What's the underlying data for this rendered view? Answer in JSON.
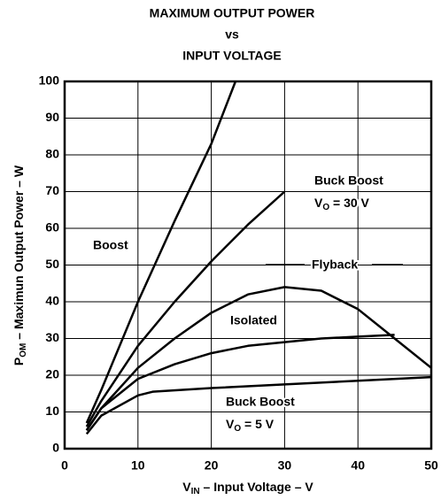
{
  "chart_data": {
    "type": "line",
    "title": [
      "MAXIMUM OUTPUT POWER",
      "vs",
      "INPUT VOLTAGE"
    ],
    "x_label": {
      "main": "V",
      "sub": "IN",
      "rest": " – Input Voltage – V"
    },
    "y_label": {
      "main": "P",
      "sub": "OM",
      "rest": " – Maximun Output Power – W"
    },
    "xlim": [
      0,
      50
    ],
    "xticks": [
      0,
      10,
      20,
      30,
      40,
      50
    ],
    "ylim": [
      0,
      100
    ],
    "yticks": [
      0,
      10,
      20,
      30,
      40,
      50,
      60,
      70,
      80,
      90,
      100
    ],
    "grid": true,
    "series": [
      {
        "name": "Boost",
        "color": "#000000",
        "x": [
          3,
          5,
          10,
          15,
          20,
          23.3
        ],
        "values": [
          7,
          16,
          40,
          62,
          83,
          100
        ]
      },
      {
        "name": "Buck Boost",
        "condition": {
          "main": "V",
          "sub": "O",
          "rest": " = 30 V"
        },
        "color": "#000000",
        "x": [
          3,
          5,
          10,
          15,
          20,
          25,
          30
        ],
        "values": [
          6,
          13,
          28,
          40,
          51,
          61,
          70
        ]
      },
      {
        "name": "Flyback",
        "color": "#000000",
        "x": [
          3,
          5,
          10,
          15,
          20,
          25,
          30,
          35,
          40,
          45,
          50
        ],
        "values": [
          5,
          11,
          22,
          30,
          37,
          42,
          44,
          43,
          38,
          30,
          22
        ]
      },
      {
        "name": "Isolated",
        "color": "#000000",
        "x": [
          3,
          5,
          10,
          15,
          20,
          25,
          30,
          35,
          40,
          45
        ],
        "values": [
          5,
          11,
          19,
          23,
          26,
          28,
          29,
          30,
          30.5,
          31
        ]
      },
      {
        "name": "Buck Boost",
        "condition": {
          "main": "V",
          "sub": "O",
          "rest": " = 5 V"
        },
        "color": "#000000",
        "x": [
          3,
          5,
          10,
          12,
          20,
          30,
          40,
          50
        ],
        "values": [
          4,
          9,
          14.5,
          15.5,
          16.5,
          17.5,
          18.5,
          19.5
        ]
      }
    ]
  }
}
